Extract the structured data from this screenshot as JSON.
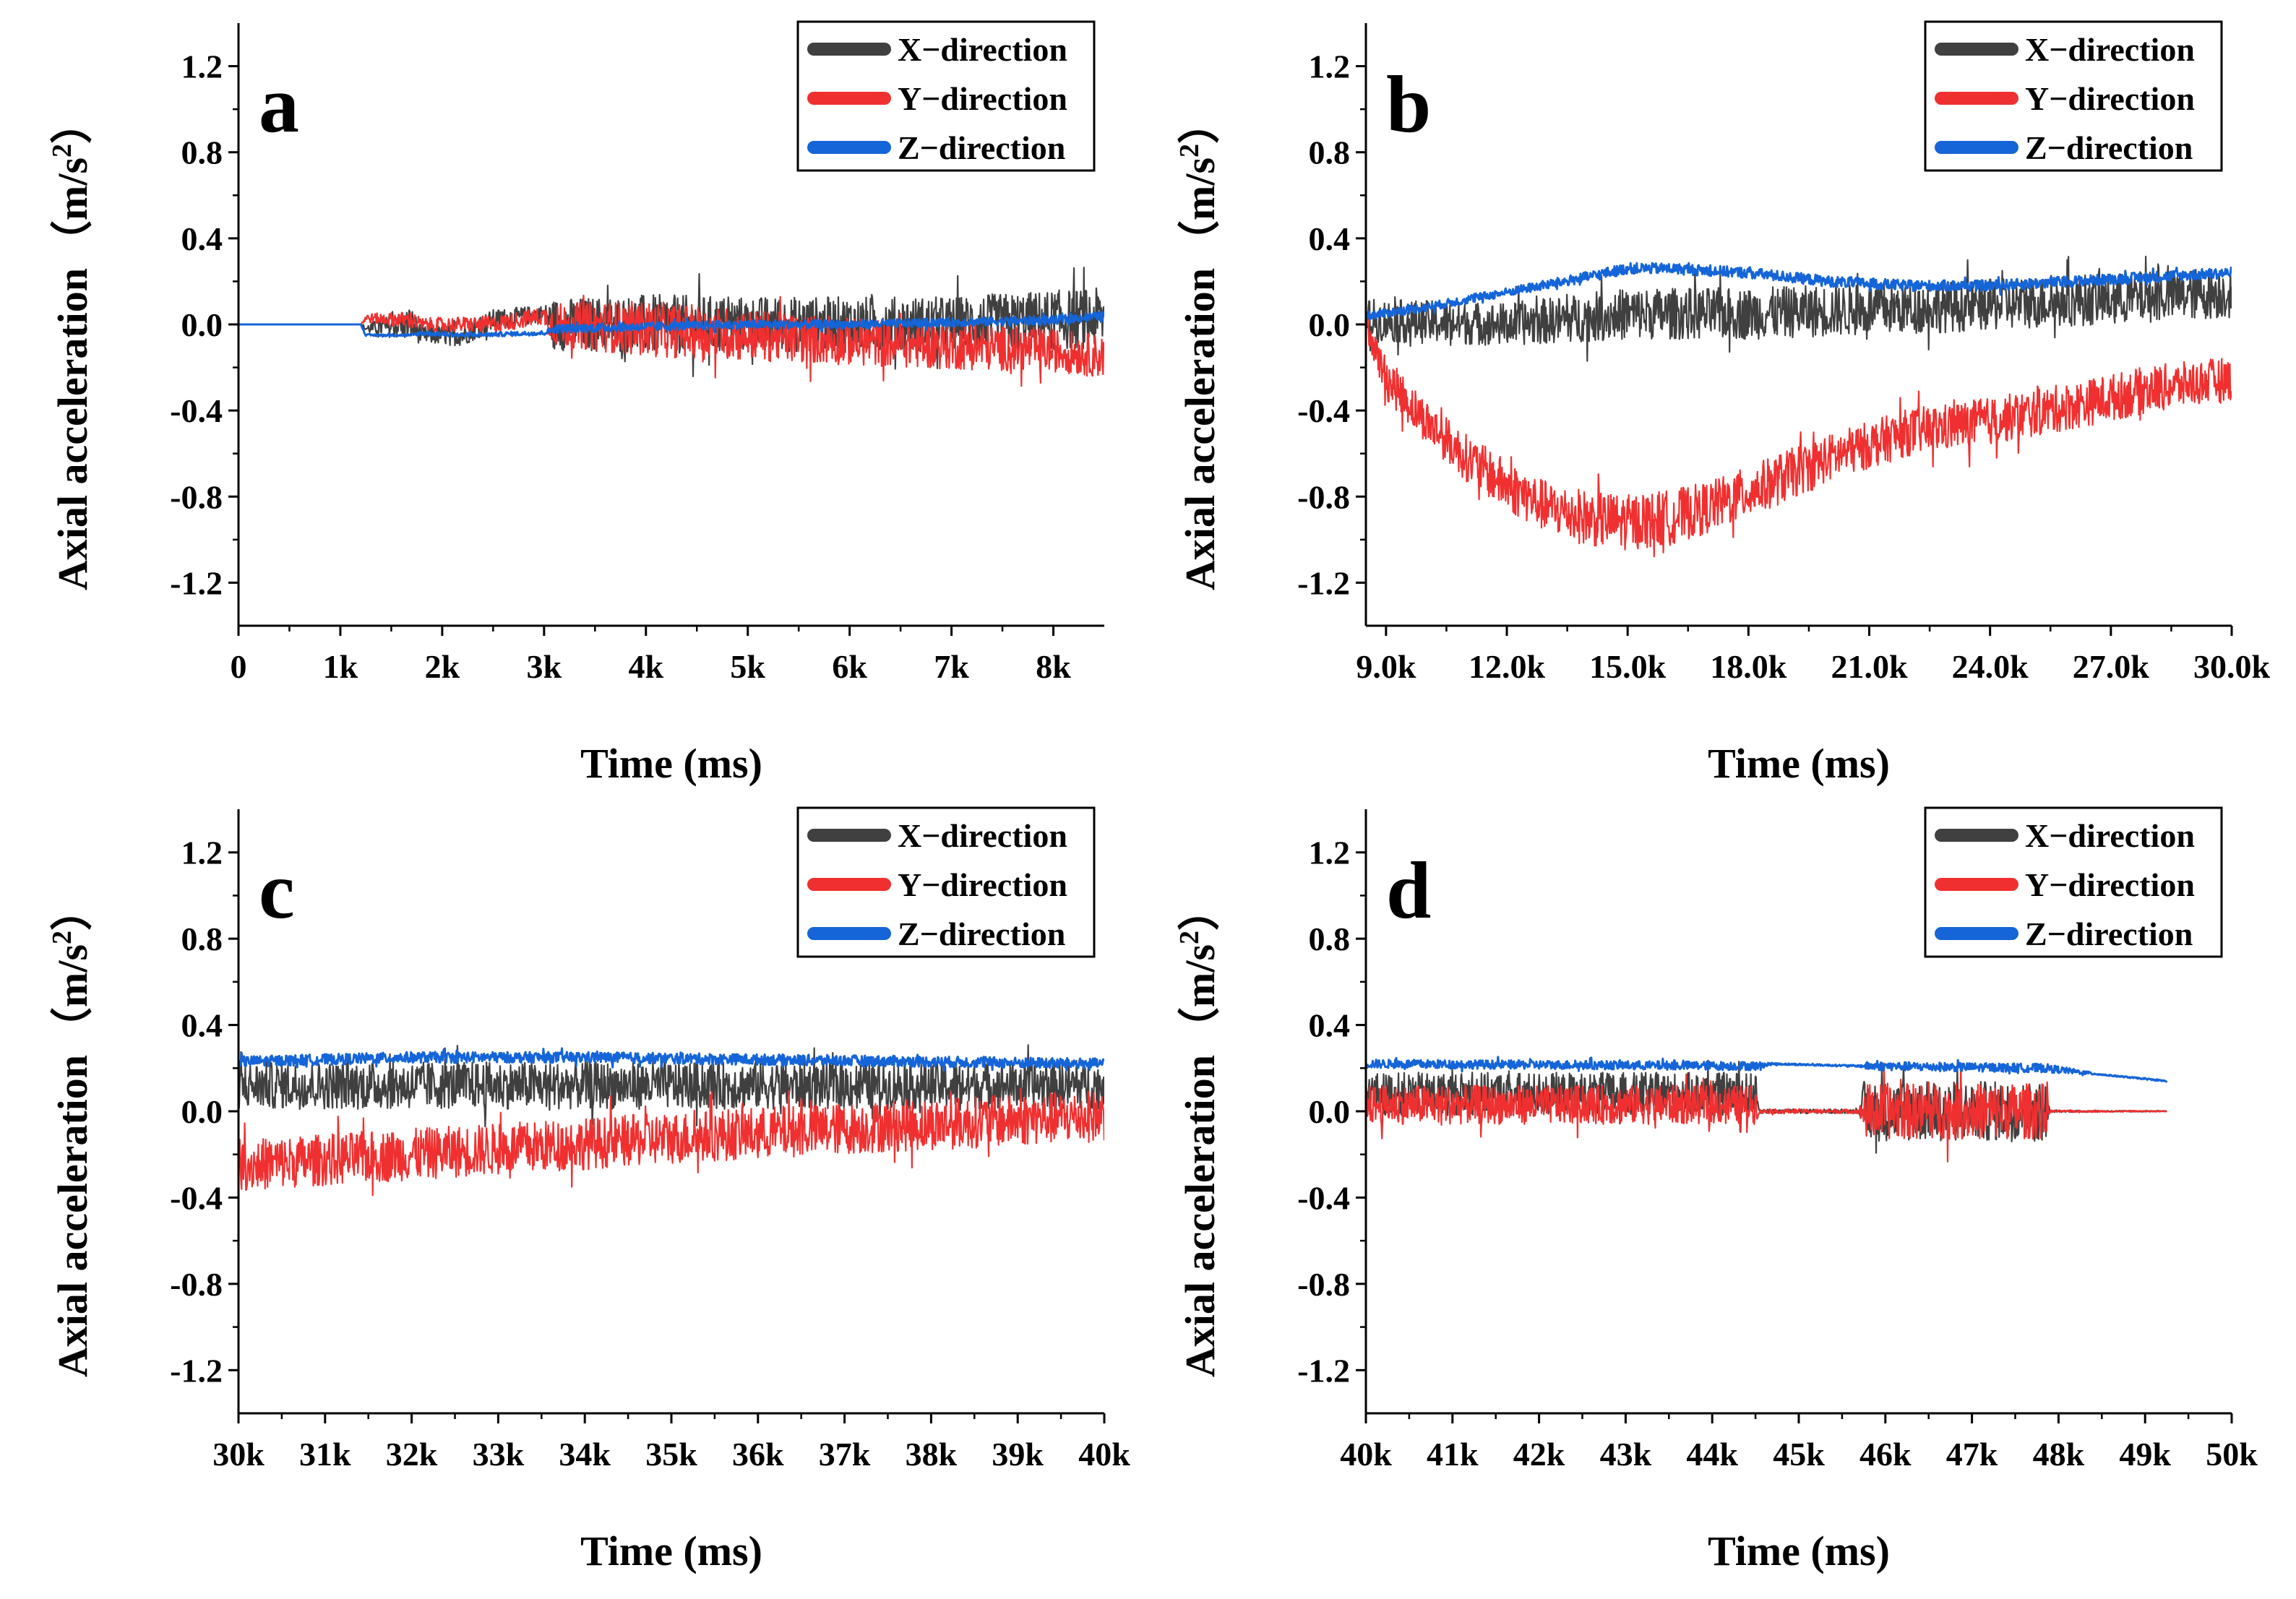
{
  "chart_data": [
    {
      "type": "line",
      "panel": "a",
      "xlabel": "Time (ms)",
      "ylabel": "Axial acceleration （m/s²）",
      "ylabel_main": "Axial acceleration",
      "ylabel_unit": "（m/s",
      "ylabel_sup": "2",
      "ylabel_end": "）",
      "xlim": [
        0,
        8500
      ],
      "ylim": [
        -1.4,
        1.4
      ],
      "xticks": [
        0,
        1000,
        2000,
        3000,
        4000,
        5000,
        6000,
        7000,
        8000
      ],
      "xtick_labels": [
        "0",
        "1k",
        "2k",
        "3k",
        "4k",
        "5k",
        "6k",
        "7k",
        "8k"
      ],
      "yticks": [
        -1.2,
        -0.8,
        -0.4,
        0.0,
        0.4,
        0.8,
        1.2
      ],
      "ytick_labels": [
        "-1.2",
        "-0.8",
        "-0.4",
        "0.0",
        "0.4",
        "0.8",
        "1.2"
      ],
      "legend_position": "top-right",
      "series": [
        {
          "name": "X−direction",
          "color": "#404040",
          "x": [
            0,
            1200,
            1250,
            1700,
            1800,
            2200,
            2500,
            3000,
            3100,
            4000,
            5000,
            6000,
            7000,
            8000,
            8500
          ],
          "y": [
            0,
            0,
            -0.02,
            0.0,
            -0.05,
            -0.05,
            0.02,
            0.05,
            0.0,
            0.0,
            0.0,
            0.0,
            0.0,
            0.02,
            0.03
          ],
          "noise": [
            0,
            0,
            0.02,
            0.08,
            0.04,
            0.05,
            0.05,
            0.04,
            0.12,
            0.14,
            0.13,
            0.13,
            0.13,
            0.14,
            0.14
          ]
        },
        {
          "name": "Y−direction",
          "color": "#f03030",
          "x": [
            0,
            1200,
            1250,
            1700,
            1800,
            2500,
            3000,
            3100,
            4000,
            5000,
            6000,
            7000,
            8000,
            8500
          ],
          "y": [
            0,
            0,
            0.03,
            0.02,
            0.0,
            0.0,
            0.04,
            0.0,
            -0.02,
            -0.05,
            -0.08,
            -0.1,
            -0.12,
            -0.15
          ],
          "noise": [
            0,
            0,
            0.02,
            0.04,
            0.03,
            0.04,
            0.04,
            0.1,
            0.13,
            0.12,
            0.11,
            0.11,
            0.1,
            0.1
          ]
        },
        {
          "name": "Z−direction",
          "color": "#1565d8",
          "x": [
            0,
            1200,
            1250,
            1700,
            1800,
            2200,
            3000,
            3100,
            4000,
            5000,
            6000,
            7000,
            8000,
            8500
          ],
          "y": [
            0,
            0,
            -0.05,
            -0.05,
            -0.04,
            -0.05,
            -0.04,
            -0.02,
            -0.01,
            0.0,
            0.0,
            0.01,
            0.02,
            0.04
          ],
          "noise": [
            0,
            0,
            0.005,
            0.005,
            0.01,
            0.01,
            0.01,
            0.02,
            0.02,
            0.02,
            0.02,
            0.02,
            0.02,
            0.02
          ]
        }
      ]
    },
    {
      "type": "line",
      "panel": "b",
      "xlabel": "Time (ms)",
      "ylabel": "Axial acceleration （m/s²）",
      "ylabel_main": "Axial acceleration",
      "ylabel_unit": "（m/s",
      "ylabel_sup": "2",
      "ylabel_end": "）",
      "xlim": [
        8500,
        30000
      ],
      "ylim": [
        -1.4,
        1.4
      ],
      "xticks": [
        9000,
        12000,
        15000,
        18000,
        21000,
        24000,
        27000,
        30000
      ],
      "xtick_labels": [
        "9.0k",
        "12.0k",
        "15.0k",
        "18.0k",
        "21.0k",
        "24.0k",
        "27.0k",
        "30.0k"
      ],
      "yticks": [
        -1.2,
        -0.8,
        -0.4,
        0.0,
        0.4,
        0.8,
        1.2
      ],
      "ytick_labels": [
        "-1.2",
        "-0.8",
        "-0.4",
        "0.0",
        "0.4",
        "0.8",
        "1.2"
      ],
      "legend_position": "top-right",
      "series": [
        {
          "name": "X−direction",
          "color": "#404040",
          "x": [
            8500,
            12000,
            15000,
            18000,
            21000,
            24000,
            27000,
            30000
          ],
          "y": [
            0.02,
            0.0,
            0.05,
            0.05,
            0.07,
            0.09,
            0.12,
            0.15
          ],
          "noise": [
            0.1,
            0.1,
            0.12,
            0.12,
            0.12,
            0.12,
            0.12,
            0.12
          ]
        },
        {
          "name": "Y−direction",
          "color": "#f03030",
          "x": [
            8500,
            9000,
            10000,
            11000,
            12000,
            13000,
            14000,
            15000,
            16000,
            17000,
            18000,
            19000,
            20000,
            21000,
            22000,
            24000,
            26000,
            28000,
            30000
          ],
          "y": [
            0.0,
            -0.25,
            -0.45,
            -0.62,
            -0.75,
            -0.85,
            -0.9,
            -0.92,
            -0.9,
            -0.85,
            -0.78,
            -0.7,
            -0.62,
            -0.56,
            -0.5,
            -0.45,
            -0.38,
            -0.3,
            -0.25
          ],
          "noise": [
            0.05,
            0.1,
            0.1,
            0.11,
            0.12,
            0.12,
            0.13,
            0.13,
            0.13,
            0.12,
            0.12,
            0.12,
            0.11,
            0.11,
            0.11,
            0.11,
            0.11,
            0.11,
            0.1
          ]
        },
        {
          "name": "Z−direction",
          "color": "#1565d8",
          "x": [
            8500,
            10000,
            12000,
            14000,
            15000,
            16000,
            18000,
            20000,
            22000,
            24000,
            26000,
            28000,
            30000
          ],
          "y": [
            0.04,
            0.08,
            0.15,
            0.22,
            0.26,
            0.26,
            0.24,
            0.2,
            0.18,
            0.18,
            0.2,
            0.22,
            0.24
          ],
          "noise": [
            0.02,
            0.02,
            0.02,
            0.025,
            0.025,
            0.025,
            0.025,
            0.025,
            0.025,
            0.025,
            0.025,
            0.025,
            0.025
          ]
        }
      ]
    },
    {
      "type": "line",
      "panel": "c",
      "xlabel": "Time (ms)",
      "ylabel": "Axial acceleration （m/s²）",
      "ylabel_main": "Axial acceleration",
      "ylabel_unit": "（m/s",
      "ylabel_sup": "2",
      "ylabel_end": "）",
      "xlim": [
        30000,
        40000
      ],
      "ylim": [
        -1.4,
        1.4
      ],
      "xticks": [
        30000,
        31000,
        32000,
        33000,
        34000,
        35000,
        36000,
        37000,
        38000,
        39000,
        40000
      ],
      "xtick_labels": [
        "30k",
        "31k",
        "32k",
        "33k",
        "34k",
        "35k",
        "36k",
        "37k",
        "38k",
        "39k",
        "40k"
      ],
      "yticks": [
        -1.2,
        -0.8,
        -0.4,
        0.0,
        0.4,
        0.8,
        1.2
      ],
      "ytick_labels": [
        "-1.2",
        "-0.8",
        "-0.4",
        "0.0",
        "0.4",
        "0.8",
        "1.2"
      ],
      "legend_position": "top-right",
      "series": [
        {
          "name": "X−direction",
          "color": "#404040",
          "x": [
            30000,
            32000,
            34000,
            36000,
            38000,
            40000
          ],
          "y": [
            0.12,
            0.12,
            0.12,
            0.12,
            0.12,
            0.12
          ],
          "noise": [
            0.11,
            0.11,
            0.11,
            0.11,
            0.11,
            0.11
          ]
        },
        {
          "name": "Y−direction",
          "color": "#f03030",
          "x": [
            30000,
            32000,
            34000,
            36000,
            38000,
            40000
          ],
          "y": [
            -0.25,
            -0.2,
            -0.15,
            -0.1,
            -0.06,
            -0.02
          ],
          "noise": [
            0.12,
            0.12,
            0.12,
            0.12,
            0.12,
            0.12
          ]
        },
        {
          "name": "Z−direction",
          "color": "#1565d8",
          "x": [
            30000,
            32000,
            34000,
            36000,
            38000,
            40000
          ],
          "y": [
            0.23,
            0.25,
            0.25,
            0.24,
            0.23,
            0.22
          ],
          "noise": [
            0.025,
            0.025,
            0.025,
            0.025,
            0.025,
            0.025
          ]
        }
      ]
    },
    {
      "type": "line",
      "panel": "d",
      "xlabel": "Time (ms)",
      "ylabel": "Axial acceleration （m/s²）",
      "ylabel_main": "Axial acceleration",
      "ylabel_unit": "（m/s",
      "ylabel_sup": "2",
      "ylabel_end": "）",
      "xlim": [
        40000,
        50000
      ],
      "ylim": [
        -1.4,
        1.4
      ],
      "xticks": [
        40000,
        41000,
        42000,
        43000,
        44000,
        45000,
        46000,
        47000,
        48000,
        49000,
        50000
      ],
      "xtick_labels": [
        "40k",
        "41k",
        "42k",
        "43k",
        "44k",
        "45k",
        "46k",
        "47k",
        "48k",
        "49k",
        "50k"
      ],
      "yticks": [
        -1.2,
        -0.8,
        -0.4,
        0.0,
        0.4,
        0.8,
        1.2
      ],
      "ytick_labels": [
        "-1.2",
        "-0.8",
        "-0.4",
        "0.0",
        "0.4",
        "0.8",
        "1.2"
      ],
      "legend_position": "top-right",
      "series": [
        {
          "name": "X−direction",
          "color": "#404040",
          "x": [
            40000,
            44500,
            44550,
            45700,
            45750,
            47850,
            47900,
            49250
          ],
          "y": [
            0.08,
            0.08,
            0.0,
            0.0,
            0.0,
            0.0,
            0.0,
            0.0
          ],
          "noise": [
            0.1,
            0.1,
            0.01,
            0.01,
            0.14,
            0.14,
            0.005,
            0.002
          ]
        },
        {
          "name": "Y−direction",
          "color": "#f03030",
          "x": [
            40000,
            44500,
            44550,
            45700,
            45750,
            47850,
            47900,
            49250
          ],
          "y": [
            0.03,
            0.03,
            0.0,
            0.0,
            0.0,
            0.0,
            0.0,
            0.0
          ],
          "noise": [
            0.09,
            0.09,
            0.01,
            0.01,
            0.13,
            0.13,
            0.005,
            0.002
          ]
        },
        {
          "name": "Z−direction",
          "color": "#1565d8",
          "x": [
            40000,
            44500,
            44700,
            45700,
            45800,
            47850,
            48500,
            49250
          ],
          "y": [
            0.22,
            0.21,
            0.22,
            0.21,
            0.21,
            0.2,
            0.17,
            0.14
          ],
          "noise": [
            0.02,
            0.02,
            0.004,
            0.004,
            0.02,
            0.02,
            0.003,
            0.003
          ]
        }
      ]
    }
  ]
}
